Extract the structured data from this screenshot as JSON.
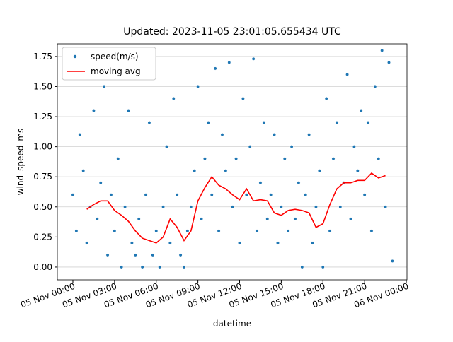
{
  "chart_data": {
    "type": "scatter-line",
    "title": "Updated: 2023-11-05 23:01:05.655434 UTC",
    "xlabel": "datetime",
    "ylabel": "wind_speed_ms",
    "xlim": [
      -1.12,
      24.05
    ],
    "ylim": [
      -0.106,
      1.855
    ],
    "xticks": [
      {
        "value": 0,
        "label": "05 Nov 00:00"
      },
      {
        "value": 3,
        "label": "05 Nov 03:00"
      },
      {
        "value": 6,
        "label": "05 Nov 06:00"
      },
      {
        "value": 9,
        "label": "05 Nov 09:00"
      },
      {
        "value": 12,
        "label": "05 Nov 12:00"
      },
      {
        "value": 15,
        "label": "05 Nov 15:00"
      },
      {
        "value": 18,
        "label": "05 Nov 18:00"
      },
      {
        "value": 21,
        "label": "05 Nov 21:00"
      },
      {
        "value": 24,
        "label": "06 Nov 00:00"
      }
    ],
    "yticks": [
      {
        "value": 0,
        "label": "0.00"
      },
      {
        "value": 0.25,
        "label": "0.25"
      },
      {
        "value": 0.5,
        "label": "0.50"
      },
      {
        "value": 0.75,
        "label": "0.75"
      },
      {
        "value": 1,
        "label": "1.00"
      },
      {
        "value": 1.25,
        "label": "1.25"
      },
      {
        "value": 1.5,
        "label": "1.50"
      },
      {
        "value": 1.75,
        "label": "1.75"
      }
    ],
    "grid": "y",
    "legend": "upper left",
    "series": [
      {
        "name": "speed(m/s)",
        "kind": "scatter",
        "color": "#1f77b4",
        "x": [
          0,
          0.25,
          0.5,
          0.75,
          1,
          1.25,
          1.5,
          1.75,
          2,
          2.25,
          2.5,
          2.75,
          3,
          3.25,
          3.5,
          3.75,
          4,
          4.25,
          4.5,
          4.75,
          5,
          5.25,
          5.5,
          5.75,
          6,
          6.25,
          6.5,
          6.75,
          7,
          7.25,
          7.5,
          7.75,
          8,
          8.25,
          8.5,
          8.75,
          9,
          9.25,
          9.5,
          9.75,
          10,
          10.25,
          10.5,
          10.75,
          11,
          11.25,
          11.5,
          11.75,
          12,
          12.25,
          12.5,
          12.75,
          13,
          13.25,
          13.5,
          13.75,
          14,
          14.25,
          14.5,
          14.75,
          15,
          15.25,
          15.5,
          15.75,
          16,
          16.25,
          16.5,
          16.75,
          17,
          17.25,
          17.5,
          17.75,
          18,
          18.25,
          18.5,
          18.75,
          19,
          19.25,
          19.5,
          19.75,
          20,
          20.25,
          20.5,
          20.75,
          21,
          21.25,
          21.5,
          21.75,
          22,
          22.25,
          22.5,
          22.75,
          23
        ],
        "values": [
          0.6,
          0.3,
          1.1,
          0.8,
          0.2,
          0.5,
          1.3,
          0.4,
          0.7,
          1.5,
          0.1,
          0.6,
          0.3,
          0.9,
          0.0,
          0.5,
          1.3,
          0.2,
          0.1,
          0.4,
          0.0,
          0.6,
          1.2,
          0.1,
          0.3,
          0.0,
          0.5,
          1.0,
          0.2,
          1.4,
          0.6,
          0.1,
          0.0,
          0.3,
          0.5,
          0.8,
          1.5,
          0.4,
          0.9,
          1.2,
          0.6,
          1.65,
          0.3,
          1.1,
          0.8,
          1.7,
          0.5,
          0.9,
          0.2,
          1.4,
          0.6,
          1.0,
          1.73,
          0.3,
          0.7,
          1.2,
          0.4,
          0.6,
          1.1,
          0.2,
          0.5,
          0.9,
          0.3,
          1.0,
          0.4,
          0.7,
          0.0,
          0.6,
          1.1,
          0.2,
          0.5,
          0.8,
          0.0,
          1.4,
          0.3,
          0.9,
          1.2,
          0.5,
          0.7,
          1.6,
          0.4,
          1.0,
          0.8,
          1.3,
          0.6,
          1.2,
          0.3,
          1.5,
          0.9,
          1.8,
          0.5,
          1.7,
          0.05
        ]
      },
      {
        "name": "moving avg",
        "kind": "line",
        "color": "#ff0000",
        "x": [
          1,
          1.5,
          2,
          2.5,
          3,
          3.5,
          4,
          4.5,
          5,
          5.5,
          6,
          6.5,
          7,
          7.5,
          8,
          8.5,
          9,
          9.5,
          10,
          10.5,
          11,
          11.5,
          12,
          12.5,
          13,
          13.5,
          14,
          14.5,
          15,
          15.5,
          16,
          16.5,
          17,
          17.5,
          18,
          18.5,
          19,
          19.5,
          20,
          20.5,
          21,
          21.5,
          22,
          22.5
        ],
        "values": [
          0.48,
          0.52,
          0.55,
          0.55,
          0.47,
          0.43,
          0.38,
          0.3,
          0.24,
          0.22,
          0.2,
          0.25,
          0.4,
          0.33,
          0.22,
          0.3,
          0.55,
          0.66,
          0.75,
          0.68,
          0.65,
          0.6,
          0.56,
          0.65,
          0.55,
          0.56,
          0.55,
          0.45,
          0.43,
          0.47,
          0.48,
          0.47,
          0.45,
          0.33,
          0.36,
          0.52,
          0.65,
          0.7,
          0.7,
          0.72,
          0.72,
          0.78,
          0.74,
          0.76
        ]
      }
    ]
  }
}
